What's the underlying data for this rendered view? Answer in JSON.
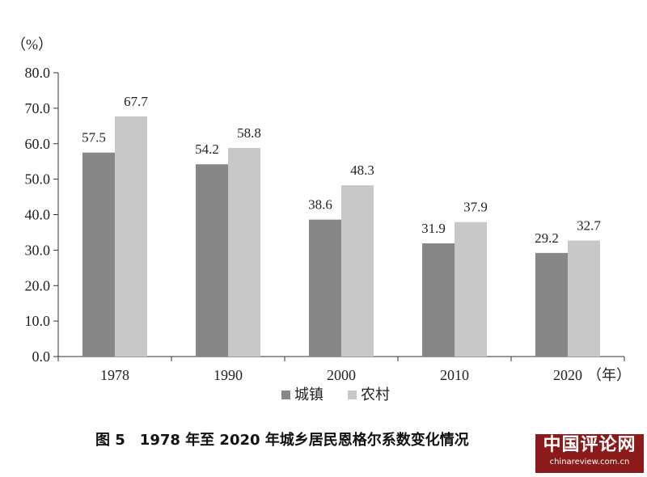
{
  "chart_data": {
    "type": "bar",
    "y_unit": "（%）",
    "x_unit": "（年）",
    "categories": [
      "1978",
      "1990",
      "2000",
      "2010",
      "2020"
    ],
    "series": [
      {
        "name": "城镇",
        "values": [
          57.5,
          54.2,
          38.6,
          31.9,
          29.2
        ],
        "color": "#878787"
      },
      {
        "name": "农村",
        "values": [
          67.7,
          58.8,
          48.3,
          37.9,
          32.7
        ],
        "color": "#c8c8c8"
      }
    ],
    "y_ticks": [
      "0.0",
      "10.0",
      "20.0",
      "30.0",
      "40.0",
      "50.0",
      "60.0",
      "70.0",
      "80.0"
    ],
    "ylim": [
      0,
      80
    ],
    "grid": false,
    "legend_position": "bottom"
  },
  "caption": "图 5　1978 年至 2020 年城乡居民恩格尔系数变化情况",
  "watermark": {
    "main": "中国评论网",
    "url": "chinareview.com.cn"
  }
}
